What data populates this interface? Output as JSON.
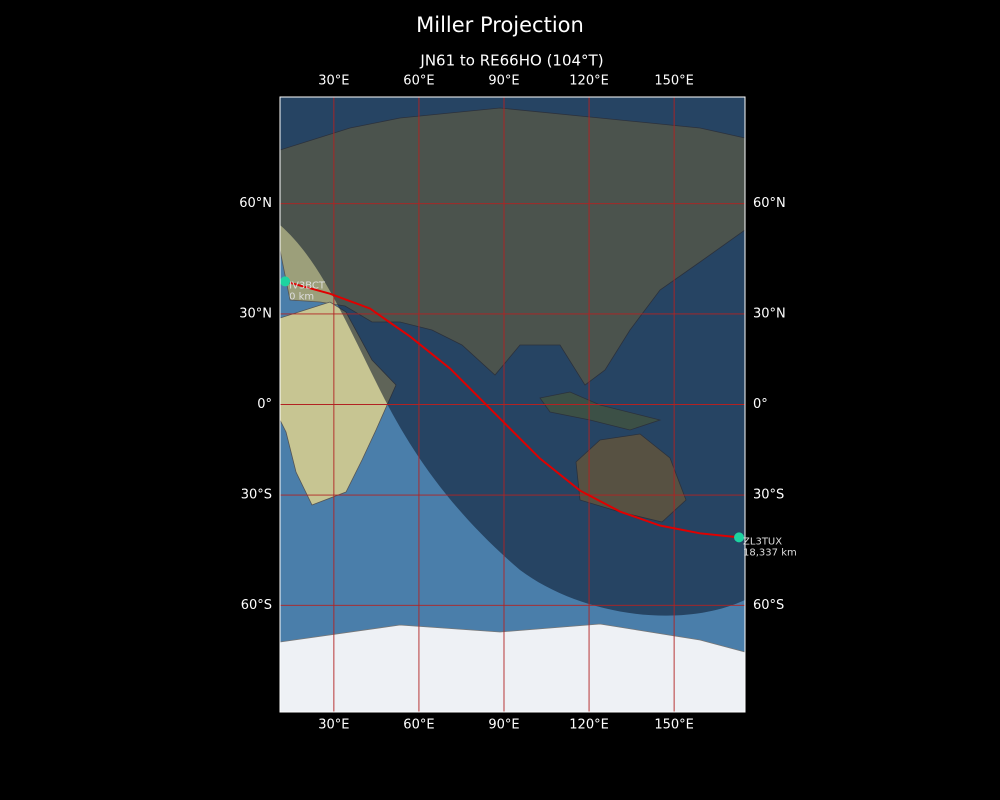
{
  "title": "Miller Projection",
  "map": {
    "type": "map",
    "projection": "miller",
    "subtitle": "JN61 to RE66HO (104°T)",
    "lonlim": [
      11,
      175
    ],
    "latlim": [
      -80,
      80
    ],
    "lonticks": [
      {
        "value": 30,
        "label": "30°E"
      },
      {
        "value": 60,
        "label": "60°E"
      },
      {
        "value": 90,
        "label": "90°E"
      },
      {
        "value": 120,
        "label": "120°E"
      },
      {
        "value": 150,
        "label": "150°E"
      }
    ],
    "latticks": [
      {
        "value": 60,
        "label": "60°N"
      },
      {
        "value": 30,
        "label": "30°N"
      },
      {
        "value": 0,
        "label": "0°"
      },
      {
        "value": -30,
        "label": "30°S"
      },
      {
        "value": -60,
        "label": "60°S"
      }
    ],
    "grid": true,
    "grid_color": "#b22222",
    "path": {
      "color": "#e00000",
      "lon": [
        12.8,
        28.6,
        42.7,
        56.9,
        71.0,
        88.6,
        102.7,
        116.8,
        131.0,
        145.0,
        159.1,
        172.9
      ],
      "lat": [
        39.8,
        36.2,
        31.7,
        22.8,
        12.2,
        -4.8,
        -18.25,
        -28.6,
        -35.1,
        -39.2,
        -41.45,
        -42.6
      ]
    },
    "station_color": "#1dd3a0",
    "stations": [
      {
        "call": "IV3BCT",
        "distance": "0 km",
        "lon": 12.8,
        "lat": 39.8
      },
      {
        "call": "ZL3TUX",
        "distance": "18,337 km",
        "lon": 172.9,
        "lat": -42.6
      }
    ]
  }
}
